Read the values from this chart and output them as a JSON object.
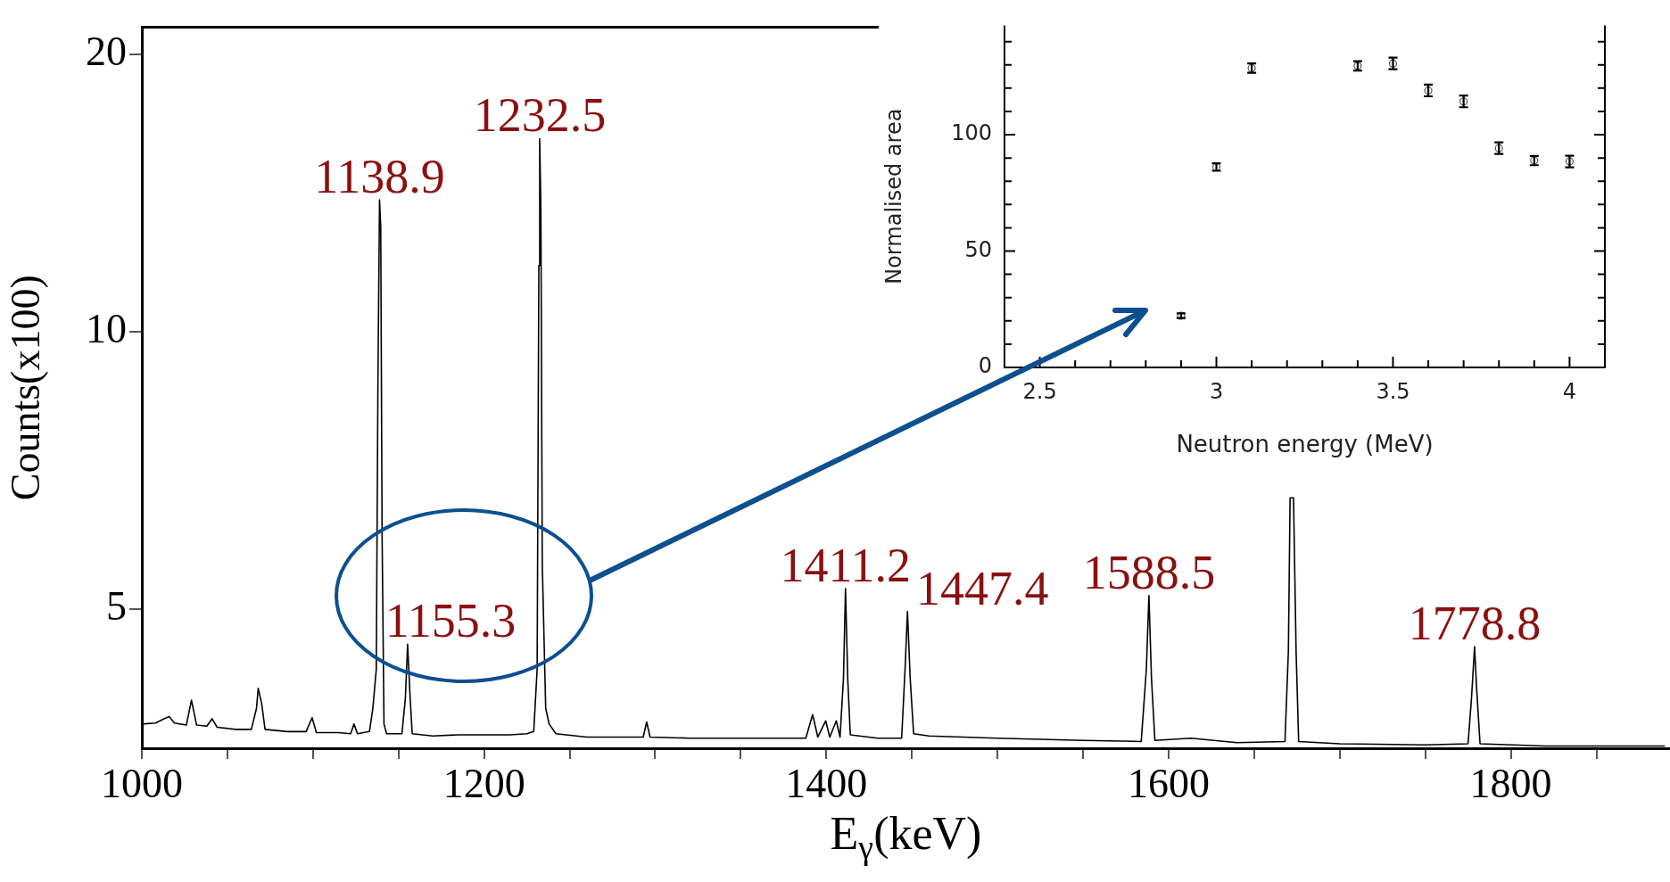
{
  "chart_data": [
    {
      "type": "line",
      "xlabel": "E$_{γ}$(keV)",
      "ylabel": "Counts(x100)",
      "log": "y",
      "marker": "none",
      "line_style": "solid",
      "xlim": [
        1000,
        1893
      ],
      "ylim": [
        3.53,
        21.4
      ],
      "xticks": [
        1000,
        {
          "value": 1050,
          "label": null
        },
        {
          "value": 1100,
          "label": null
        },
        {
          "value": 1150,
          "label": null
        },
        1200,
        {
          "value": 1250,
          "label": null
        },
        {
          "value": 1300,
          "label": null
        },
        {
          "value": 1350,
          "label": null
        },
        1400,
        {
          "value": 1450,
          "label": null
        },
        {
          "value": 1500,
          "label": null
        },
        {
          "value": 1550,
          "label": null
        },
        1600,
        {
          "value": 1650,
          "label": null
        },
        {
          "value": 1700,
          "label": null
        },
        {
          "value": 1750,
          "label": null
        },
        1800,
        {
          "value": 1850,
          "label": null
        }
      ],
      "yticks": [
        5,
        10,
        20
      ],
      "series": [
        {
          "color": "#000000",
          "x": [
            1000,
            1008,
            1013,
            1016,
            1019,
            1026,
            1029,
            1032,
            1038,
            1041,
            1044,
            1055,
            1064,
            1067,
            1068,
            1070,
            1072,
            1085,
            1096,
            1099.5,
            1102,
            1115,
            1122,
            1124,
            1126,
            1133,
            1135,
            1137,
            1138,
            1138.9,
            1139.6,
            1140.4,
            1141.5,
            1143,
            1152,
            1154,
            1155.3,
            1156.8,
            1158,
            1170,
            1185,
            1200,
            1215,
            1225,
            1229,
            1231,
            1232,
            1232.5,
            1233.2,
            1234,
            1236,
            1238,
            1242,
            1260,
            1280,
            1293,
            1295,
            1297,
            1320,
            1350,
            1380,
            1388,
            1392,
            1395,
            1399.6,
            1402,
            1405.8,
            1408,
            1410,
            1411.2,
            1412.5,
            1414,
            1430,
            1444,
            1446,
            1447.4,
            1449,
            1451,
            1460,
            1500,
            1550,
            1584,
            1587,
            1588.5,
            1590,
            1592,
            1613,
            1640,
            1668,
            1670,
            1671,
            1673,
            1674.5,
            1676,
            1700,
            1750,
            1775,
            1777,
            1778.8,
            1780,
            1782,
            1820,
            1860,
            1890
          ],
          "values": [
            3.75,
            3.76,
            3.8,
            3.82,
            3.76,
            3.74,
            3.98,
            3.74,
            3.73,
            3.8,
            3.72,
            3.7,
            3.7,
            3.9,
            4.1,
            3.95,
            3.7,
            3.68,
            3.68,
            3.81,
            3.67,
            3.67,
            3.66,
            3.75,
            3.66,
            3.68,
            3.9,
            4.3,
            9.0,
            13.9,
            13.0,
            6.0,
            3.75,
            3.66,
            3.66,
            4.0,
            4.58,
            4.0,
            3.66,
            3.64,
            3.65,
            3.65,
            3.65,
            3.66,
            3.68,
            4.3,
            11.8,
            16.2,
            13.5,
            5.6,
            3.9,
            3.75,
            3.66,
            3.63,
            3.63,
            3.63,
            3.77,
            3.63,
            3.62,
            3.62,
            3.62,
            3.62,
            3.84,
            3.63,
            3.78,
            3.63,
            3.78,
            3.63,
            4.2,
            5.26,
            4.2,
            3.65,
            3.62,
            3.62,
            4.3,
            4.97,
            4.2,
            3.66,
            3.64,
            3.62,
            3.6,
            3.59,
            4.3,
            5.17,
            4.2,
            3.6,
            3.62,
            3.58,
            3.59,
            4.5,
            6.6,
            6.6,
            4.5,
            3.59,
            3.57,
            3.56,
            3.57,
            4.0,
            4.55,
            4.1,
            3.57,
            3.55,
            3.55,
            3.55
          ]
        }
      ],
      "annotations": [
        {
          "text": "1138.9",
          "x": 1138.9,
          "y": 13.9
        },
        {
          "text": "1155.3",
          "x": 1155.3,
          "y": 4.58
        },
        {
          "text": "1232.5",
          "x": 1232.5,
          "y": 16.2
        },
        {
          "text": "1411.2",
          "x": 1411.2,
          "y": 5.26
        },
        {
          "text": "1447.4",
          "x": 1447.4,
          "y": 4.97
        },
        {
          "text": "1588.5",
          "x": 1588.5,
          "y": 5.17
        },
        {
          "text": "1778.8",
          "x": 1778.8,
          "y": 4.55
        }
      ]
    },
    {
      "type": "scatter",
      "xlabel": "Neutron energy (MeV)",
      "ylabel": "Normalised area",
      "marker": "circle",
      "color": "#555555",
      "xlim": [
        2.4,
        4.1
      ],
      "ylim": [
        0,
        147
      ],
      "xticks": [
        2.5,
        {
          "value": 2.6,
          "label": null
        },
        {
          "value": 2.7,
          "label": null
        },
        {
          "value": 2.8,
          "label": null
        },
        {
          "value": 2.9,
          "label": null
        },
        3,
        {
          "value": 3.1,
          "label": null
        },
        {
          "value": 3.2,
          "label": null
        },
        {
          "value": 3.3,
          "label": null
        },
        {
          "value": 3.4,
          "label": null
        },
        3.5,
        {
          "value": 3.6,
          "label": null
        },
        {
          "value": 3.7,
          "label": null
        },
        {
          "value": 3.8,
          "label": null
        },
        {
          "value": 3.9,
          "label": null
        },
        4
      ],
      "yticks": [
        0,
        {
          "value": 10,
          "label": null
        },
        {
          "value": 20,
          "label": null
        },
        {
          "value": 30,
          "label": null
        },
        {
          "value": 40,
          "label": null
        },
        50,
        {
          "value": 60,
          "label": null
        },
        {
          "value": 70,
          "label": null
        },
        {
          "value": 80,
          "label": null
        },
        {
          "value": 90,
          "label": null
        },
        100,
        {
          "value": 110,
          "label": null
        },
        {
          "value": 120,
          "label": null
        },
        {
          "value": 130,
          "label": null
        },
        {
          "value": 140,
          "label": null
        }
      ],
      "x": [
        2.9,
        3.0,
        3.1,
        3.4,
        3.5,
        3.6,
        3.7,
        3.8,
        3.9,
        4.0
      ],
      "values": [
        22.2,
        86.1,
        128.6,
        129.6,
        130.6,
        119,
        114.3,
        94.2,
        88.9,
        88.5
      ],
      "errors": [
        1,
        1.6,
        2,
        2,
        2.5,
        2.5,
        2.5,
        2.5,
        2,
        2.5
      ]
    }
  ]
}
